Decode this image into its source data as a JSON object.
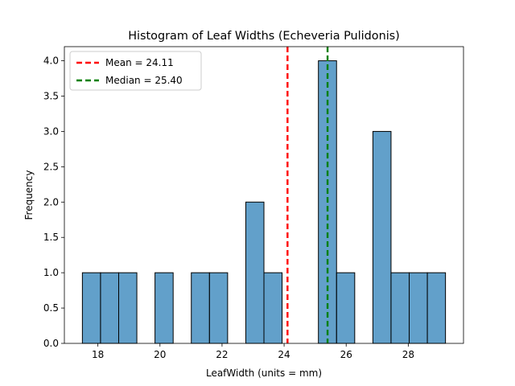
{
  "chart_data": {
    "type": "bar",
    "title": "Histogram of Leaf Widths (Echeveria Pulidonis)",
    "xlabel": "LeafWidth (units = mm)",
    "ylabel": "Frequency",
    "xlim": [
      16.92,
      29.78
    ],
    "ylim": [
      0,
      4.2
    ],
    "bin_edges": [
      17.5,
      18.085,
      18.67,
      19.255,
      19.84,
      20.425,
      21.01,
      21.595,
      22.18,
      22.765,
      23.35,
      23.935,
      24.52,
      25.105,
      25.69,
      26.275,
      26.86,
      27.445,
      28.03,
      28.615,
      29.2
    ],
    "values": [
      1,
      1,
      1,
      0,
      1,
      0,
      1,
      1,
      0,
      2,
      1,
      0,
      0,
      4,
      1,
      0,
      3,
      1,
      1,
      1
    ],
    "bar_color": "#1f77b4",
    "bar_opacity": 0.7,
    "bar_edgecolor": "#000000",
    "xticks": [
      18,
      20,
      22,
      24,
      26,
      28
    ],
    "xtick_labels": [
      "18",
      "20",
      "22",
      "24",
      "26",
      "28"
    ],
    "yticks": [
      0.0,
      0.5,
      1.0,
      1.5,
      2.0,
      2.5,
      3.0,
      3.5,
      4.0
    ],
    "ytick_labels": [
      "0.0",
      "0.5",
      "1.0",
      "1.5",
      "2.0",
      "2.5",
      "3.0",
      "3.5",
      "4.0"
    ],
    "reference_lines": [
      {
        "name": "Mean = 24.11",
        "x": 24.11,
        "color": "#ff0000",
        "style": "dashed"
      },
      {
        "name": "Median = 25.40",
        "x": 25.4,
        "color": "#008000",
        "style": "dashed"
      }
    ],
    "legend_position": "upper-left",
    "grid": false
  }
}
